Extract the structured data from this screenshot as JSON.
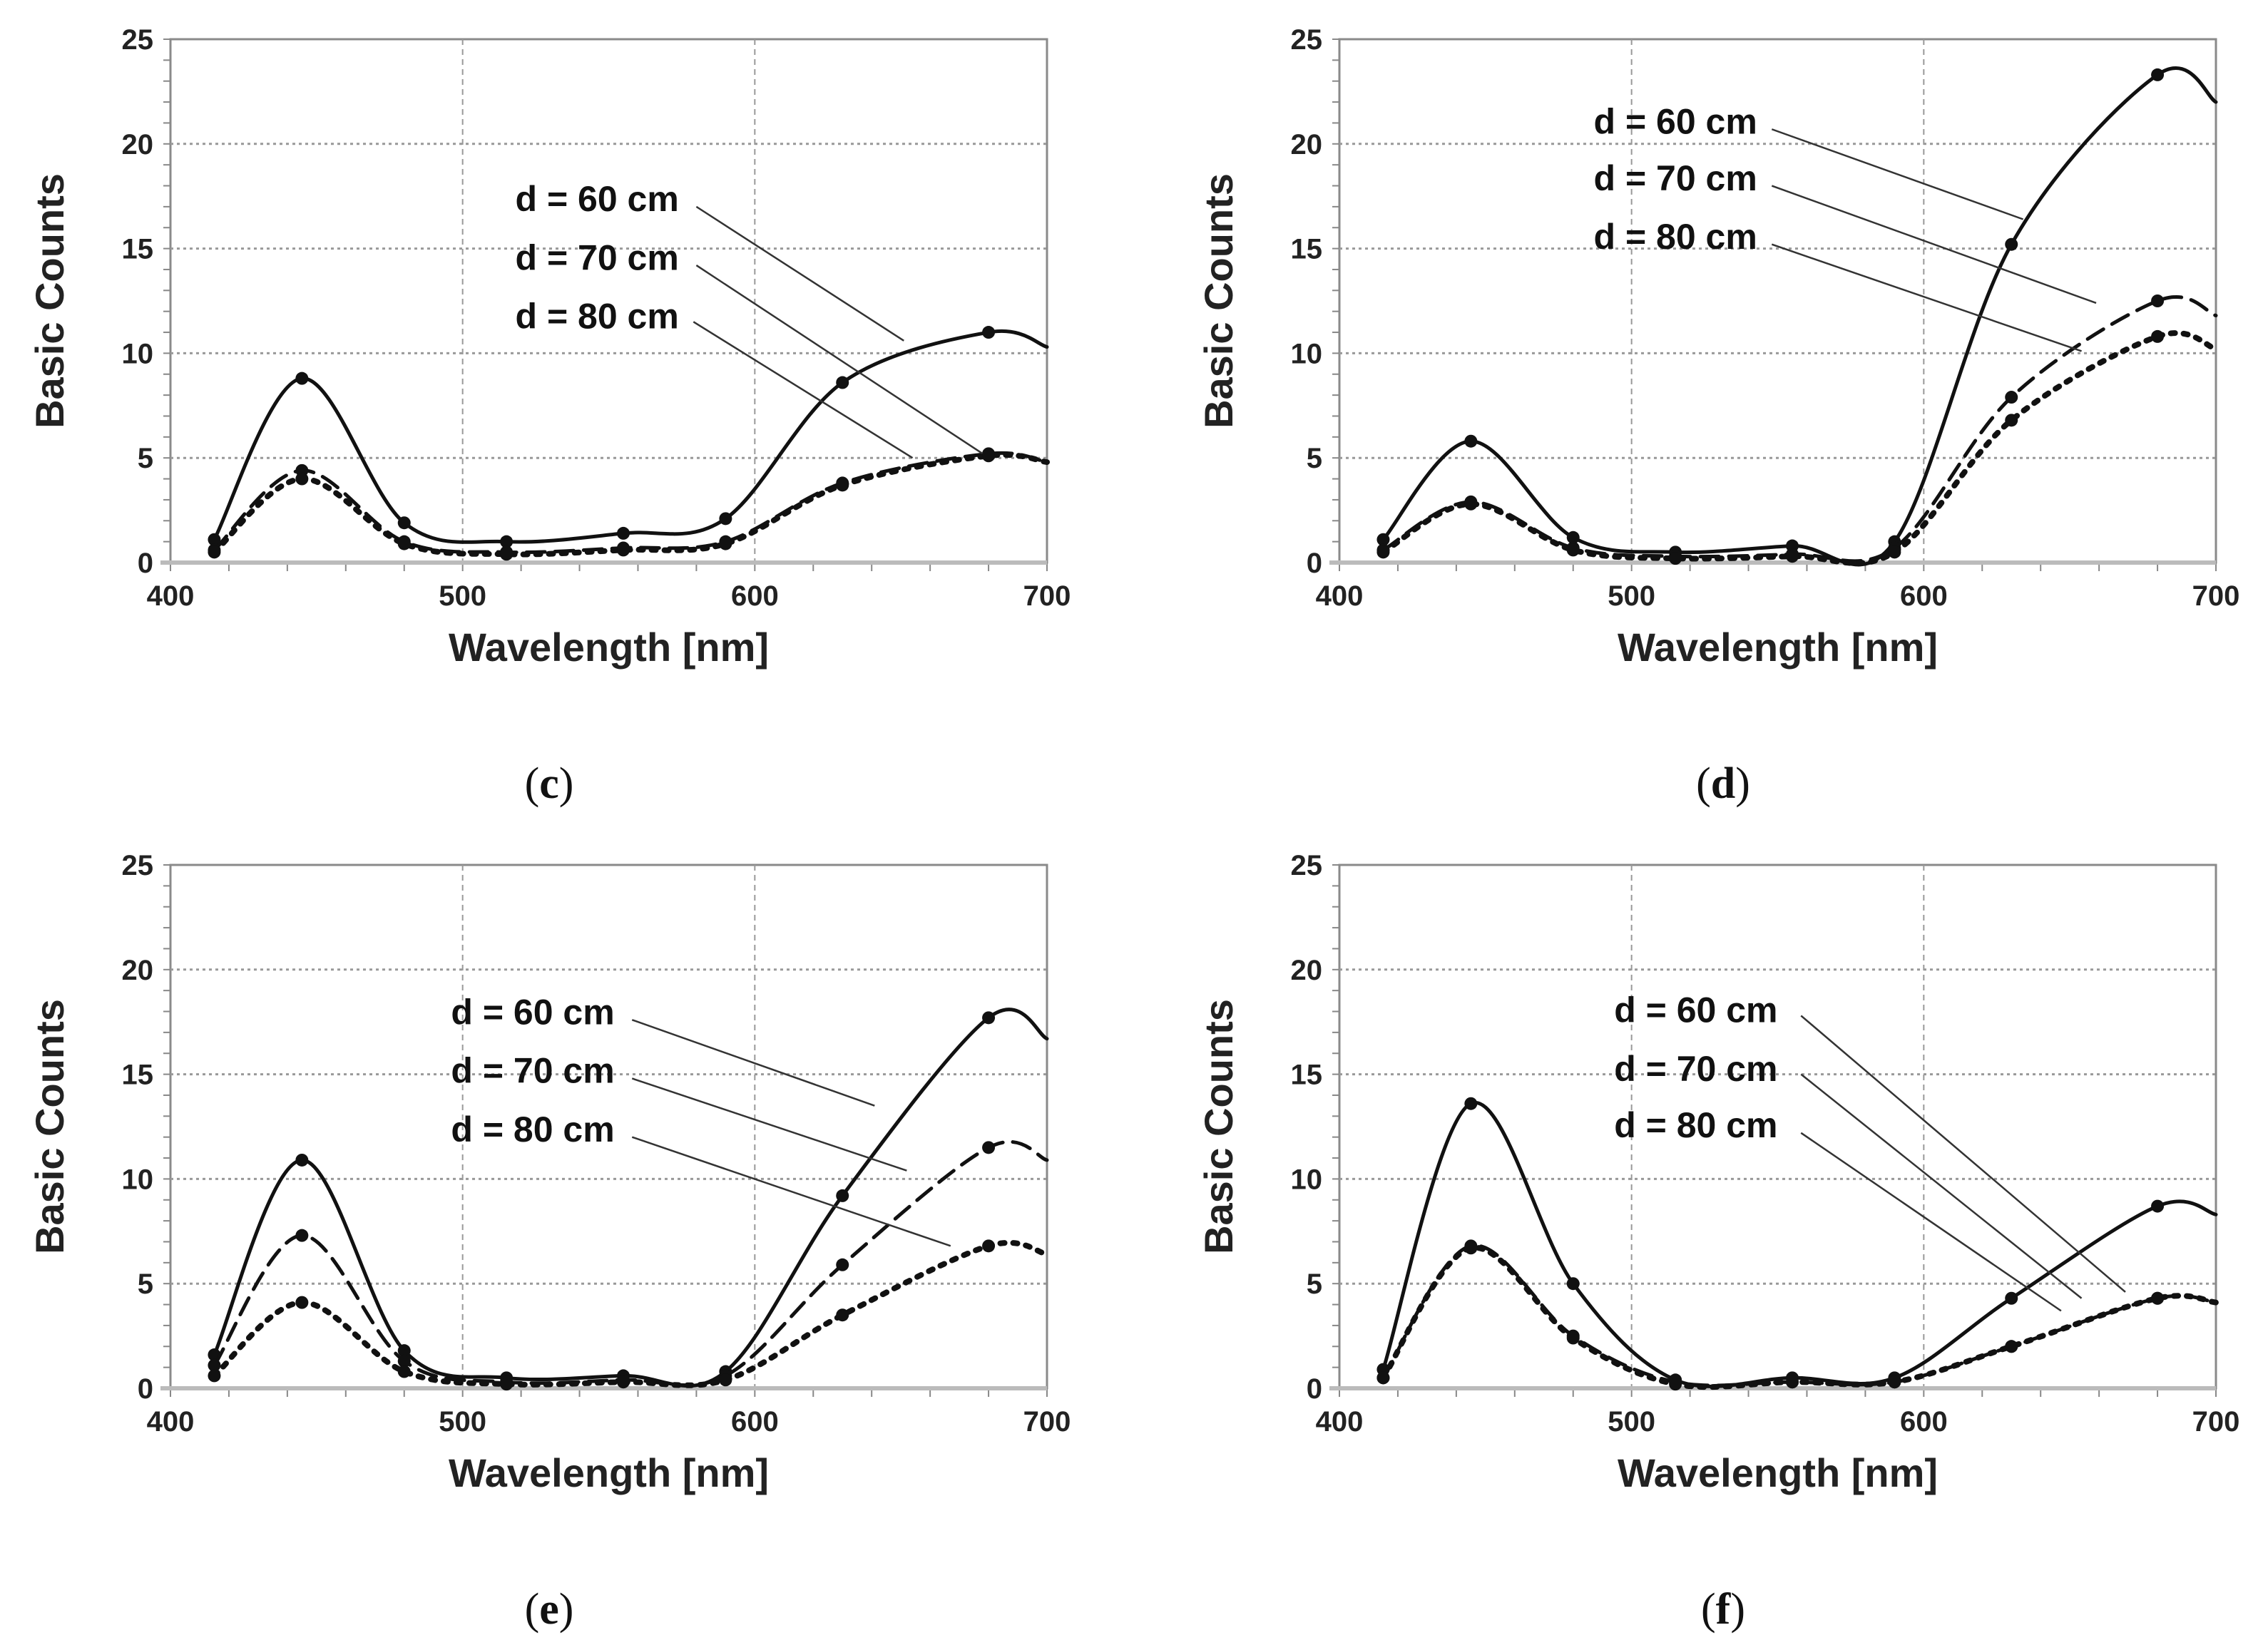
{
  "chart_data": [
    {
      "type": "line",
      "caption": "c",
      "xlabel": "Wavelength [nm]",
      "ylabel": "Basic Counts",
      "xlim": [
        400,
        700
      ],
      "ylim": [
        0,
        25
      ],
      "xticks": [
        400,
        500,
        600,
        700
      ],
      "yticks": [
        0,
        5,
        10,
        15,
        20,
        25
      ],
      "grid": true,
      "x": [
        415,
        445,
        480,
        515,
        555,
        590,
        630,
        680,
        700
      ],
      "series": [
        {
          "name": "d = 60 cm",
          "style": "solid",
          "values": [
            1.1,
            8.8,
            1.9,
            1.0,
            1.4,
            2.1,
            8.6,
            11.0,
            10.3
          ]
        },
        {
          "name": "d = 70 cm",
          "style": "dashed",
          "values": [
            0.6,
            4.4,
            1.0,
            0.5,
            0.7,
            1.0,
            3.8,
            5.2,
            4.8
          ]
        },
        {
          "name": "d = 80 cm",
          "style": "dotted",
          "values": [
            0.5,
            4.0,
            0.9,
            0.4,
            0.6,
            0.9,
            3.7,
            5.1,
            4.8
          ]
        }
      ]
    },
    {
      "type": "line",
      "caption": "d",
      "xlabel": "Wavelength [nm]",
      "ylabel": "Basic Counts",
      "xlim": [
        400,
        700
      ],
      "ylim": [
        0,
        25
      ],
      "xticks": [
        400,
        500,
        600,
        700
      ],
      "yticks": [
        0,
        5,
        10,
        15,
        20,
        25
      ],
      "grid": true,
      "x": [
        415,
        445,
        480,
        515,
        555,
        590,
        630,
        680,
        700
      ],
      "series": [
        {
          "name": "d = 60 cm",
          "style": "solid",
          "values": [
            1.1,
            5.8,
            1.2,
            0.5,
            0.8,
            1.0,
            15.2,
            23.3,
            22.0
          ]
        },
        {
          "name": "d = 70 cm",
          "style": "dashed",
          "values": [
            0.6,
            2.9,
            0.7,
            0.3,
            0.4,
            0.7,
            7.9,
            12.5,
            11.8
          ]
        },
        {
          "name": "d = 80 cm",
          "style": "dotted",
          "values": [
            0.5,
            2.8,
            0.6,
            0.2,
            0.3,
            0.5,
            6.8,
            10.8,
            10.2
          ]
        }
      ]
    },
    {
      "type": "line",
      "caption": "e",
      "xlabel": "Wavelength [nm]",
      "ylabel": "Basic Counts",
      "xlim": [
        400,
        700
      ],
      "ylim": [
        0,
        25
      ],
      "xticks": [
        400,
        500,
        600,
        700
      ],
      "yticks": [
        0,
        5,
        10,
        15,
        20,
        25
      ],
      "grid": true,
      "x": [
        415,
        445,
        480,
        515,
        555,
        590,
        630,
        680,
        700
      ],
      "series": [
        {
          "name": "d = 60 cm",
          "style": "solid",
          "values": [
            1.6,
            10.9,
            1.8,
            0.5,
            0.6,
            0.8,
            9.2,
            17.7,
            16.7
          ]
        },
        {
          "name": "d = 70 cm",
          "style": "dashed",
          "values": [
            1.1,
            7.3,
            1.3,
            0.3,
            0.4,
            0.6,
            5.9,
            11.5,
            10.9
          ]
        },
        {
          "name": "d = 80 cm",
          "style": "dotted",
          "values": [
            0.6,
            4.1,
            0.8,
            0.2,
            0.3,
            0.4,
            3.5,
            6.8,
            6.4
          ]
        }
      ]
    },
    {
      "type": "line",
      "caption": "f",
      "xlabel": "Wavelength [nm]",
      "ylabel": "Basic Counts",
      "xlim": [
        400,
        700
      ],
      "ylim": [
        0,
        25
      ],
      "xticks": [
        400,
        500,
        600,
        700
      ],
      "yticks": [
        0,
        5,
        10,
        15,
        20,
        25
      ],
      "grid": true,
      "x": [
        415,
        445,
        480,
        515,
        555,
        590,
        630,
        680,
        700
      ],
      "series": [
        {
          "name": "d = 60 cm",
          "style": "solid",
          "values": [
            0.9,
            13.6,
            5.0,
            0.4,
            0.5,
            0.5,
            4.3,
            8.7,
            8.3
          ]
        },
        {
          "name": "d = 70 cm",
          "style": "dashed",
          "values": [
            0.5,
            6.8,
            2.5,
            0.3,
            0.3,
            0.3,
            2.0,
            4.3,
            4.1
          ]
        },
        {
          "name": "d = 80 cm",
          "style": "dotted",
          "values": [
            0.5,
            6.7,
            2.4,
            0.2,
            0.3,
            0.3,
            2.0,
            4.3,
            4.1
          ]
        }
      ]
    }
  ]
}
